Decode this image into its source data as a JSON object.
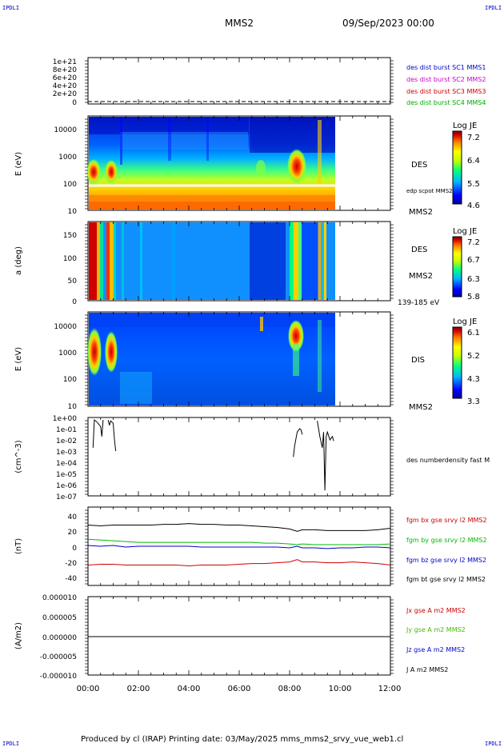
{
  "header": {
    "ipdli_tl": "IPDLI",
    "ipdli_tr": "IPDLI",
    "ipdli_bl": "IPDLI",
    "ipdli_br": "IPDLI",
    "spacecraft": "MMS2",
    "datetime": "09/Sep/2023 00:00"
  },
  "footer": {
    "text": "Produced by cl (IRAP)   Printing date: 03/May/2025   mms_mms2_srvy_vue_web1.cl"
  },
  "colors": {
    "mms1": "#0000cc",
    "mms2": "#cc00cc",
    "mms3": "#cc0000",
    "mms4": "#00aa00",
    "bx": "#cc0000",
    "by": "#00bb00",
    "bz": "#0000cc",
    "bt": "#000000",
    "jx": "#cc0000",
    "jy": "#44bb00",
    "jz": "#0000cc",
    "j": "#000000"
  },
  "panels": {
    "p1": {
      "yticks": [
        "1e+21",
        "8e+20",
        "6e+20",
        "4e+20",
        "2e+20",
        "0"
      ],
      "legend": [
        "des dist burst SC1 MMS1",
        "des dist burst SC2 MMS2",
        "des dist burst SC3 MMS3",
        "des dist burst SC4 MMS4"
      ]
    },
    "p2": {
      "ylabel": "E (eV)",
      "yticks": [
        "10000",
        "1000",
        "100",
        "10"
      ],
      "species": "DES",
      "overlay": "edp scpot MMS2",
      "sc": "MMS2",
      "cbar_title": "Log JE",
      "cbar_ticks": [
        "7.2",
        "6.4",
        "5.5",
        "4.6"
      ]
    },
    "p3": {
      "ylabel": "a (deg)",
      "yticks": [
        "150",
        "100",
        "50",
        "0"
      ],
      "species": "DES",
      "sc": "MMS2",
      "range": "139-185 eV",
      "cbar_title": "Log JE",
      "cbar_ticks": [
        "7.2",
        "6.7",
        "6.3",
        "5.8"
      ]
    },
    "p4": {
      "ylabel": "E (eV)",
      "yticks": [
        "10000",
        "1000",
        "100",
        "10"
      ],
      "species": "DIS",
      "sc": "MMS2",
      "cbar_title": "Log JE",
      "cbar_ticks": [
        "6.1",
        "5.2",
        "4.3",
        "3.3"
      ]
    },
    "p5": {
      "ylabel": "(cm^-3)",
      "yticks": [
        "1e+00",
        "1e-01",
        "1e-02",
        "1e-03",
        "1e-04",
        "1e-05",
        "1e-06",
        "1e-07"
      ],
      "legend": "des numberdensity fast M"
    },
    "p6": {
      "ylabel": "(nT)",
      "yticks": [
        "40",
        "20",
        "0",
        "-20",
        "-40"
      ],
      "legend": [
        "fgm bx gse srvy l2 MMS2",
        "fgm by gse srvy l2 MMS2",
        "fgm bz gse srvy l2 MMS2",
        "fgm bt gse srvy l2 MMS2"
      ]
    },
    "p7": {
      "ylabel": "(A/m2)",
      "yticks": [
        "0.000010",
        "0.000005",
        "0.000000",
        "-0.000005",
        "-0.000010"
      ],
      "legend": [
        "Jx gse A m2 MMS2",
        "Jy gse A m2 MMS2",
        "Jz gse A m2 MMS2",
        "J A m2 MMS2"
      ]
    }
  },
  "xaxis": {
    "ticks": [
      "00:00",
      "02:00",
      "04:00",
      "06:00",
      "08:00",
      "10:00",
      "12:00"
    ]
  },
  "chart_data": {
    "type": "line",
    "title": "MMS2",
    "xlabel": "",
    "xlim": [
      0,
      12
    ],
    "x_hours": [
      0,
      0.5,
      1,
      1.5,
      2,
      2.5,
      3,
      3.5,
      4,
      4.5,
      5,
      5.5,
      6,
      6.5,
      7,
      7.5,
      8,
      8.3,
      8.5,
      9,
      9.5,
      10,
      10.5,
      11,
      11.5,
      12
    ],
    "series": [
      {
        "name": "fgm bt gse srvy l2 MMS2",
        "values": [
          27,
          26,
          27,
          27,
          27,
          27,
          28,
          28,
          29,
          28,
          28,
          27,
          27,
          26,
          25,
          24,
          22,
          19,
          21,
          21,
          20,
          20,
          20,
          20,
          21,
          23
        ]
      },
      {
        "name": "fgm by gse srvy l2 MMS2",
        "values": [
          9,
          8,
          7,
          6,
          5,
          5,
          5,
          5,
          5,
          5,
          5,
          5,
          5,
          5,
          4,
          4,
          3,
          2,
          3,
          2,
          2,
          2,
          2,
          2,
          2,
          3
        ]
      },
      {
        "name": "fgm bz gse srvy l2 MMS2",
        "values": [
          1,
          0,
          1,
          -1,
          0,
          0,
          0,
          0,
          0,
          -1,
          -1,
          -1,
          -1,
          -1,
          -1,
          -1,
          -2,
          0,
          -2,
          -2,
          -3,
          -2,
          -2,
          -1,
          -1,
          -2
        ]
      },
      {
        "name": "fgm bx gse srvy l2 MMS2",
        "values": [
          -24,
          -23,
          -23,
          -24,
          -24,
          -24,
          -24,
          -24,
          -25,
          -24,
          -24,
          -24,
          -23,
          -22,
          -22,
          -21,
          -20,
          -17,
          -20,
          -20,
          -21,
          -21,
          -20,
          -21,
          -22,
          -24
        ]
      }
    ],
    "density": {
      "name": "des numberdensity fast M",
      "segments": [
        {
          "x": [
            0.2,
            0.25,
            0.3,
            0.4,
            0.5,
            0.55,
            0.6
          ],
          "y": [
            0.002,
            0.6,
            0.5,
            0.3,
            0.15,
            0.02,
            0.6
          ]
        },
        {
          "x": [
            0.8,
            0.85,
            0.9,
            1.0,
            1.05,
            1.1
          ],
          "y": [
            0.6,
            0.2,
            0.5,
            0.3,
            0.01,
            0.001
          ]
        },
        {
          "x": [
            8.15,
            8.2,
            8.3,
            8.4,
            8.45,
            8.5
          ],
          "y": [
            0.0003,
            0.003,
            0.05,
            0.1,
            0.08,
            0.03
          ]
        },
        {
          "x": [
            9.1,
            9.15,
            9.2,
            9.3,
            9.35,
            9.4,
            9.45,
            9.5,
            9.6,
            9.7,
            9.75
          ],
          "y": [
            0.5,
            0.1,
            0.02,
            0.002,
            0.05,
            3e-07,
            0.02,
            0.05,
            0.01,
            0.02,
            0.008
          ]
        }
      ]
    },
    "ylim_b": [
      -50,
      50
    ],
    "ylim_n": [
      1e-07,
      1
    ],
    "ylim_j": [
      -1e-05,
      1e-05
    ]
  }
}
